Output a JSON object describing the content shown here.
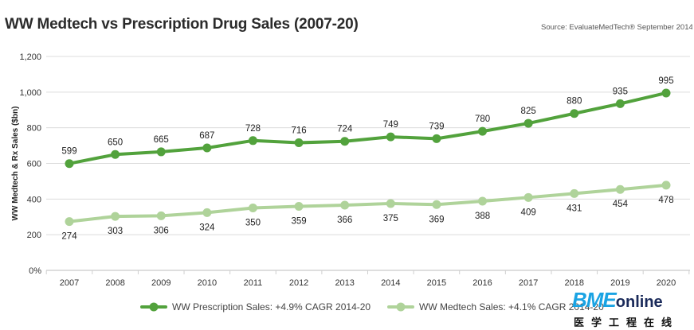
{
  "title": "WW Medtech vs Prescription Drug Sales (2007-20)",
  "source": "Source: EvaluateMedTech® September 2014",
  "logo": {
    "main": "BME",
    "suffix": "online",
    "sub": "医学工程在线"
  },
  "colors": {
    "rx": "#52a23c",
    "medtech": "#afd39a",
    "grid": "#dcdcdc",
    "text": "#333333"
  },
  "chart_data": {
    "type": "line",
    "title": "WW Medtech vs Prescription Drug Sales (2007-20)",
    "xlabel": "",
    "ylabel": "WW Medtech & Rx Sales ($bn)",
    "ylim": [
      0,
      1200
    ],
    "yticks": [
      0,
      200,
      400,
      600,
      800,
      1000,
      1200
    ],
    "ytick_labels": [
      "0%",
      "200",
      "400",
      "600",
      "800",
      "1,000",
      "1,200"
    ],
    "grid": true,
    "legend_position": "bottom",
    "categories": [
      "2007",
      "2008",
      "2009",
      "2010",
      "2011",
      "2012",
      "2013",
      "2014",
      "2015",
      "2016",
      "2017",
      "2018",
      "2019",
      "2020"
    ],
    "series": [
      {
        "name": "WW Prescription Sales: +4.9% CAGR 2014-20",
        "color": "#52a23c",
        "label_position": "above",
        "values": [
          599,
          650,
          665,
          687,
          728,
          716,
          724,
          749,
          739,
          780,
          825,
          880,
          935,
          995
        ]
      },
      {
        "name": "WW Medtech Sales: +4.1% CAGR 2014-20",
        "color": "#afd39a",
        "label_position": "below",
        "values": [
          274,
          303,
          306,
          324,
          350,
          359,
          366,
          375,
          369,
          388,
          409,
          431,
          454,
          478
        ]
      }
    ]
  }
}
